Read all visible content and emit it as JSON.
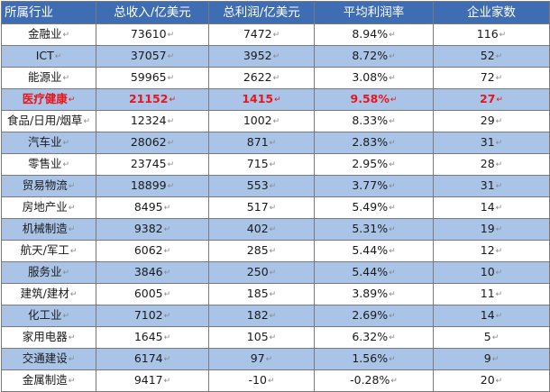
{
  "table": {
    "headers": [
      "所属行业",
      "总收入/亿美元",
      "总利润/亿美元",
      "平均利润率",
      "企业家数"
    ],
    "highlight_row": 3,
    "highlight_color": "#e8161c",
    "header_color": "#3f6db3",
    "stripe_color": "#a9c4e6",
    "paragraph_mark": "↵",
    "rows": [
      [
        "金融业",
        "73610",
        "7472",
        "8.94%",
        "116"
      ],
      [
        "ICT",
        "37057",
        "3952",
        "8.72%",
        "52"
      ],
      [
        "能源业",
        "59965",
        "2622",
        "3.08%",
        "72"
      ],
      [
        "医疗健康",
        "21152",
        "1415",
        "9.58%",
        "27"
      ],
      [
        "食品/日用/烟草",
        "12324",
        "1002",
        "8.33%",
        "29"
      ],
      [
        "汽车业",
        "28062",
        "871",
        "2.83%",
        "31"
      ],
      [
        "零售业",
        "23745",
        "715",
        "2.95%",
        "28"
      ],
      [
        "贸易物流",
        "18899",
        "553",
        "3.77%",
        "31"
      ],
      [
        "房地产业",
        "8495",
        "517",
        "5.49%",
        "14"
      ],
      [
        "机械制造",
        "9382",
        "402",
        "5.31%",
        "19"
      ],
      [
        "航天/军工",
        "6062",
        "285",
        "5.44%",
        "12"
      ],
      [
        "服务业",
        "3846",
        "250",
        "5.44%",
        "10"
      ],
      [
        "建筑/建材",
        "6005",
        "185",
        "3.89%",
        "11"
      ],
      [
        "化工业",
        "7102",
        "182",
        "2.69%",
        "14"
      ],
      [
        "家用电器",
        "1645",
        "105",
        "6.32%",
        "5"
      ],
      [
        "交通建设",
        "6174",
        "97",
        "1.56%",
        "9"
      ],
      [
        "金属制造",
        "9417",
        "-10",
        "-0.28%",
        "20"
      ]
    ]
  }
}
